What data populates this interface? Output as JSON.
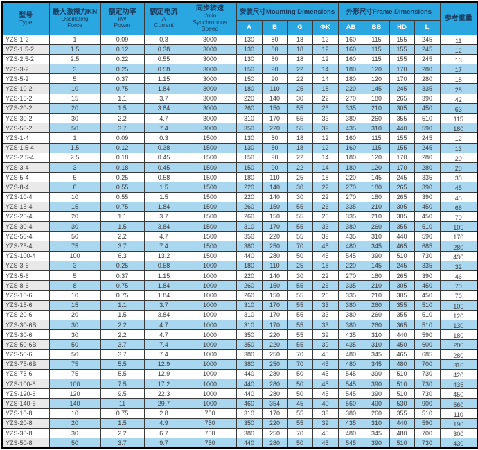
{
  "title": "YZS vibration motor specification table",
  "colors": {
    "header_blue": "#2aa7e0",
    "row_blue": "#a9d7f0",
    "row_gray": "#e9e9e9",
    "header_text": "#1b3c60",
    "subheader_text": "#ffffff",
    "data_text": "#3d3d3d"
  },
  "table": {
    "columns": {
      "type": {
        "zh": "型号",
        "en": "Type"
      },
      "force": {
        "zh": "最大激振力KN",
        "en1": "Oscillating",
        "en2": "Force"
      },
      "power": {
        "zh": "额定功率",
        "unit": "kW",
        "en": "Power"
      },
      "current": {
        "zh": "额定电流",
        "unit": "A",
        "en": "Current"
      },
      "speed": {
        "zh": "同步转速",
        "unit": "r/min",
        "en1": "Synchronous",
        "en2": "Speed"
      },
      "mounting": {
        "label": "安装尺寸Mounting Dimensions",
        "sub": [
          "A",
          "B",
          "G",
          "ΦK"
        ]
      },
      "frame": {
        "label": "外形尺寸Frame Dimensions",
        "sub": [
          "AB",
          "BB",
          "HD",
          "L"
        ]
      },
      "weight": {
        "zh": "参考重量"
      }
    },
    "rows": [
      [
        "YZS-1-2",
        "1",
        "0.09",
        "0.3",
        "3000",
        "130",
        "80",
        "18",
        "12",
        "160",
        "115",
        "155",
        "245",
        "11"
      ],
      [
        "YZS-1.5-2",
        "1.5",
        "0.12",
        "0.38",
        "3000",
        "130",
        "80",
        "18",
        "12",
        "160",
        "115",
        "155",
        "245",
        "12"
      ],
      [
        "YZS-2.5-2",
        "2.5",
        "0.22",
        "0.55",
        "3000",
        "130",
        "80",
        "18",
        "12",
        "160",
        "115",
        "155",
        "245",
        "13"
      ],
      [
        "YZS-3-2",
        "3",
        "0.25",
        "0.58",
        "3000",
        "150",
        "90",
        "22",
        "14",
        "180",
        "120",
        "170",
        "280",
        "17"
      ],
      [
        "YZS-5-2",
        "5",
        "0.37",
        "1.15",
        "3000",
        "150",
        "90",
        "22",
        "14",
        "180",
        "120",
        "170",
        "280",
        "18"
      ],
      [
        "YZS-10-2",
        "10",
        "0.75",
        "1.84",
        "3000",
        "180",
        "110",
        "25",
        "18",
        "220",
        "145",
        "245",
        "335",
        "28"
      ],
      [
        "YZS-15-2",
        "15",
        "1.1",
        "3.7",
        "3000",
        "220",
        "140",
        "30",
        "22",
        "270",
        "180",
        "265",
        "390",
        "42"
      ],
      [
        "YZS-20-2",
        "20",
        "1.5",
        "3.84",
        "3000",
        "260",
        "150",
        "55",
        "26",
        "335",
        "210",
        "305",
        "450",
        "63"
      ],
      [
        "YZS-30-2",
        "30",
        "2.2",
        "4.7",
        "3000",
        "310",
        "170",
        "55",
        "33",
        "380",
        "260",
        "355",
        "510",
        "115"
      ],
      [
        "YZS-50-2",
        "50",
        "3.7",
        "7.4",
        "3000",
        "350",
        "220",
        "55",
        "39",
        "435",
        "310",
        "440",
        "590",
        "180"
      ],
      [
        "YZS-1-4",
        "1",
        "0.09",
        "0.3",
        "1500",
        "130",
        "80",
        "18",
        "12",
        "160",
        "115",
        "155",
        "245",
        "12"
      ],
      [
        "YZS-1.5-4",
        "1.5",
        "0.12",
        "0.38",
        "1500",
        "130",
        "80",
        "18",
        "12",
        "160",
        "115",
        "155",
        "245",
        "13"
      ],
      [
        "YZS-2.5-4",
        "2.5",
        "0.18",
        "0.45",
        "1500",
        "150",
        "90",
        "22",
        "14",
        "180",
        "120",
        "170",
        "280",
        "20"
      ],
      [
        "YZS-3-4",
        "3",
        "0.18",
        "0.45",
        "1500",
        "150",
        "90",
        "22",
        "14",
        "180",
        "120",
        "170",
        "280",
        "20"
      ],
      [
        "YZS-5-4",
        "5",
        "0.25",
        "0.58",
        "1500",
        "180",
        "110",
        "25",
        "18",
        "220",
        "145",
        "245",
        "335",
        "30"
      ],
      [
        "YZS-8-4",
        "8",
        "0.55",
        "1.5",
        "1500",
        "220",
        "140",
        "30",
        "22",
        "270",
        "180",
        "265",
        "390",
        "45"
      ],
      [
        "YZS-10-4",
        "10",
        "0.55",
        "1.5",
        "1500",
        "220",
        "140",
        "30",
        "22",
        "270",
        "180",
        "265",
        "390",
        "45"
      ],
      [
        "YZS-15-4",
        "15",
        "0.75",
        "1.84",
        "1500",
        "260",
        "150",
        "55",
        "26",
        "335",
        "210",
        "305",
        "450",
        "66"
      ],
      [
        "YZS-20-4",
        "20",
        "1.1",
        "3.7",
        "1500",
        "260",
        "150",
        "55",
        "26",
        "335",
        "210",
        "305",
        "450",
        "70"
      ],
      [
        "YZS-30-4",
        "30",
        "1.5",
        "3.84",
        "1500",
        "310",
        "170",
        "55",
        "33",
        "380",
        "260",
        "355",
        "510",
        "105"
      ],
      [
        "YZS-50-4",
        "50",
        "2.2",
        "4.7",
        "1500",
        "350",
        "220",
        "55",
        "39",
        "435",
        "310",
        "440",
        "590",
        "170"
      ],
      [
        "YZS-75-4",
        "75",
        "3.7",
        "7.4",
        "1500",
        "380",
        "250",
        "70",
        "45",
        "480",
        "345",
        "465",
        "685",
        "280"
      ],
      [
        "YZS-100-4",
        "100",
        "6.3",
        "13.2",
        "1500",
        "440",
        "280",
        "50",
        "45",
        "545",
        "390",
        "510",
        "730",
        "430"
      ],
      [
        "YZS-3-6",
        "3",
        "0.25",
        "0.58",
        "1000",
        "180",
        "110",
        "25",
        "18",
        "220",
        "145",
        "245",
        "335",
        "32"
      ],
      [
        "YZS-5-6",
        "5",
        "0.37",
        "1.15",
        "1000",
        "220",
        "140",
        "30",
        "22",
        "270",
        "180",
        "265",
        "390",
        "46"
      ],
      [
        "YZS-8-6",
        "8",
        "0.75",
        "1.84",
        "1000",
        "260",
        "150",
        "55",
        "26",
        "335",
        "210",
        "305",
        "450",
        "70"
      ],
      [
        "YZS-10-6",
        "10",
        "0.75",
        "1.84",
        "1000",
        "260",
        "150",
        "55",
        "26",
        "335",
        "210",
        "305",
        "450",
        "70"
      ],
      [
        "YZS-15-6",
        "15",
        "1.1",
        "3.7",
        "1000",
        "310",
        "170",
        "55",
        "33",
        "380",
        "260",
        "355",
        "510",
        "105"
      ],
      [
        "YZS-20-6",
        "20",
        "1.5",
        "3.84",
        "1000",
        "310",
        "170",
        "55",
        "33",
        "380",
        "260",
        "355",
        "510",
        "120"
      ],
      [
        "YZS-30-6B",
        "30",
        "2.2",
        "4.7",
        "1000",
        "310",
        "170",
        "55",
        "33",
        "380",
        "260",
        "365",
        "510",
        "130"
      ],
      [
        "YZS-30-6",
        "30",
        "2.2",
        "4.7",
        "1000",
        "350",
        "220",
        "55",
        "39",
        "435",
        "310",
        "440",
        "590",
        "180"
      ],
      [
        "YZS-50-6B",
        "50",
        "3.7",
        "7.4",
        "1000",
        "350",
        "220",
        "55",
        "39",
        "435",
        "310",
        "450",
        "600",
        "200"
      ],
      [
        "YZS-50-6",
        "50",
        "3.7",
        "7.4",
        "1000",
        "380",
        "250",
        "70",
        "45",
        "480",
        "345",
        "465",
        "685",
        "280"
      ],
      [
        "YZS-75-6B",
        "75",
        "5.5",
        "12.9",
        "1000",
        "380",
        "250",
        "70",
        "45",
        "480",
        "345",
        "480",
        "700",
        "310"
      ],
      [
        "YZS-75-6",
        "75",
        "5.5",
        "12.9",
        "1000",
        "440",
        "280",
        "50",
        "45",
        "545",
        "390",
        "510",
        "730",
        "420"
      ],
      [
        "YZS-100-6",
        "100",
        "7.5",
        "17.2",
        "1000",
        "440",
        "280",
        "50",
        "45",
        "545",
        "390",
        "510",
        "730",
        "435"
      ],
      [
        "YZS-120-6",
        "120",
        "9.5",
        "22.3",
        "1000",
        "440",
        "280",
        "50",
        "45",
        "545",
        "390",
        "510",
        "730",
        "450"
      ],
      [
        "YZS-140-6",
        "140",
        "11",
        "29.7",
        "1000",
        "460",
        "354",
        "45",
        "40",
        "560",
        "490",
        "530",
        "900",
        "560"
      ],
      [
        "YZS-10-8",
        "10",
        "0.75",
        "2.8",
        "750",
        "310",
        "170",
        "55",
        "33",
        "380",
        "260",
        "355",
        "510",
        "110"
      ],
      [
        "YZS-20-8",
        "20",
        "1.5",
        "4.9",
        "750",
        "350",
        "220",
        "55",
        "39",
        "435",
        "310",
        "440",
        "590",
        "190"
      ],
      [
        "YZS-30-8",
        "30",
        "2.2",
        "6.7",
        "750",
        "380",
        "250",
        "70",
        "45",
        "480",
        "345",
        "480",
        "700",
        "300"
      ],
      [
        "YZS-50-8",
        "50",
        "3.7",
        "9.7",
        "750",
        "440",
        "280",
        "50",
        "45",
        "545",
        "390",
        "510",
        "730",
        "430"
      ]
    ]
  }
}
